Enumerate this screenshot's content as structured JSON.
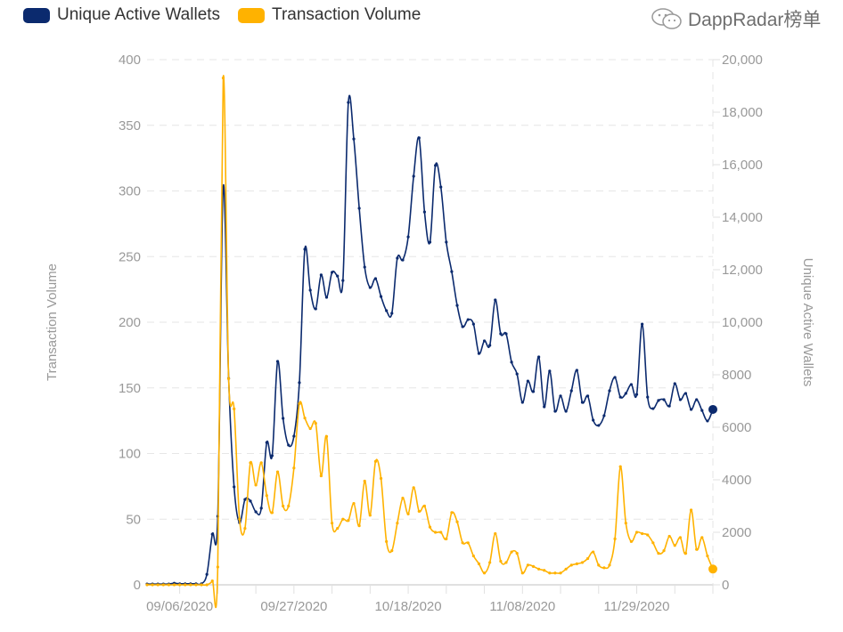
{
  "legend": [
    {
      "label": "Unique Active Wallets",
      "color": "#0b2a6e"
    },
    {
      "label": "Transaction Volume",
      "color": "#ffb200"
    }
  ],
  "watermark": {
    "text": "DappRadar榜单",
    "icon": "wechat-icon"
  },
  "chart_data": {
    "type": "line",
    "title": "",
    "y_left": {
      "label": "Transaction Volume",
      "range": [
        0,
        400
      ],
      "ticks": [
        "0",
        "50",
        "100",
        "150",
        "200",
        "250",
        "300",
        "350",
        "400"
      ]
    },
    "y_right": {
      "label": "Unique Active Wallets",
      "range": [
        0,
        20000
      ],
      "ticks": [
        "0",
        "2000",
        "4000",
        "6000",
        "8000",
        "10,000",
        "12,000",
        "14,000",
        "16,000",
        "18,000",
        "20,000"
      ]
    },
    "x_ticks": [
      "09/06/2020",
      "09/27/2020",
      "10/18/2020",
      "11/08/2020",
      "11/29/2020"
    ],
    "grid": true,
    "legend_position": "top-left",
    "x": [
      "08/31/2020",
      "09/01/2020",
      "09/02/2020",
      "09/03/2020",
      "09/04/2020",
      "09/05/2020",
      "09/06/2020",
      "09/07/2020",
      "09/08/2020",
      "09/09/2020",
      "09/10/2020",
      "09/11/2020",
      "09/12/2020",
      "09/13/2020",
      "09/14/2020",
      "09/15/2020",
      "09/16/2020",
      "09/17/2020",
      "09/18/2020",
      "09/19/2020",
      "09/20/2020",
      "09/21/2020",
      "09/22/2020",
      "09/23/2020",
      "09/24/2020",
      "09/25/2020",
      "09/26/2020",
      "09/27/2020",
      "09/28/2020",
      "09/29/2020",
      "09/30/2020",
      "10/01/2020",
      "10/02/2020",
      "10/03/2020",
      "10/04/2020",
      "10/05/2020",
      "10/06/2020",
      "10/07/2020",
      "10/08/2020",
      "10/09/2020",
      "10/10/2020",
      "10/11/2020",
      "10/12/2020",
      "10/13/2020",
      "10/14/2020",
      "10/15/2020",
      "10/16/2020",
      "10/17/2020",
      "10/18/2020",
      "10/19/2020",
      "10/20/2020",
      "10/21/2020",
      "10/22/2020",
      "10/23/2020",
      "10/24/2020",
      "10/25/2020",
      "10/26/2020",
      "10/27/2020",
      "10/28/2020",
      "10/29/2020",
      "10/30/2020",
      "10/31/2020",
      "11/01/2020",
      "11/02/2020",
      "11/03/2020",
      "11/04/2020",
      "11/05/2020",
      "11/06/2020",
      "11/07/2020",
      "11/08/2020",
      "11/09/2020",
      "11/10/2020",
      "11/11/2020",
      "11/12/2020",
      "11/13/2020",
      "11/14/2020",
      "11/15/2020",
      "11/16/2020",
      "11/17/2020",
      "11/18/2020",
      "11/19/2020",
      "11/20/2020",
      "11/21/2020",
      "11/22/2020",
      "11/23/2020",
      "11/24/2020",
      "11/25/2020",
      "11/26/2020",
      "11/27/2020",
      "11/28/2020",
      "11/29/2020",
      "11/30/2020",
      "12/01/2020",
      "12/02/2020",
      "12/03/2020",
      "12/04/2020",
      "12/05/2020",
      "12/06/2020",
      "12/07/2020",
      "12/08/2020",
      "12/09/2020",
      "12/10/2020",
      "12/11/2020",
      "12/12/2020",
      "12/13/2020"
    ],
    "series": [
      {
        "name": "Unique Active Wallets",
        "axis": "right",
        "color": "#0b2a6e",
        "values": [
          30,
          30,
          30,
          30,
          30,
          60,
          40,
          40,
          40,
          40,
          40,
          400,
          1930,
          2610,
          15150,
          7860,
          3730,
          2370,
          3250,
          3190,
          2780,
          2920,
          5420,
          4920,
          8510,
          6340,
          5320,
          5660,
          7700,
          12780,
          11220,
          10510,
          11800,
          10950,
          11900,
          11760,
          11590,
          18370,
          16980,
          14340,
          12100,
          11320,
          11660,
          10980,
          10440,
          10340,
          12440,
          12370,
          13250,
          15560,
          17020,
          14200,
          13050,
          15970,
          15150,
          13050,
          11930,
          10640,
          9830,
          10100,
          9930,
          8810,
          9290,
          9120,
          10850,
          9560,
          9560,
          8480,
          8030,
          6950,
          7760,
          7360,
          8680,
          6780,
          8140,
          6610,
          7190,
          6610,
          7390,
          8170,
          6950,
          7190,
          6270,
          6070,
          6440,
          7390,
          7900,
          7150,
          7290,
          7630,
          7250,
          9930,
          7150,
          6710,
          7020,
          7050,
          6810,
          7660,
          7050,
          7290,
          6680,
          7050,
          6640,
          6240,
          6680
        ]
      },
      {
        "name": "Transaction Volume",
        "axis": "left",
        "color": "#ffb200",
        "values": [
          0,
          0,
          0,
          0,
          0,
          0,
          0,
          0,
          0,
          0,
          0,
          0,
          3,
          13.6,
          386,
          157,
          134,
          50,
          43,
          93,
          76,
          93,
          68,
          55,
          86,
          60,
          60,
          89,
          138,
          127,
          119,
          123,
          83,
          113,
          47,
          43,
          50,
          49,
          62,
          45,
          79,
          53,
          94,
          81,
          33,
          26,
          47,
          66,
          54,
          74,
          56,
          60,
          44,
          40,
          40,
          35,
          55,
          48,
          32,
          32,
          22,
          16,
          9,
          17,
          39,
          18,
          17,
          25,
          24,
          9,
          15,
          14,
          12,
          11,
          9,
          9,
          9,
          12,
          15,
          16,
          17,
          20,
          25,
          15,
          13,
          15,
          35,
          90,
          47,
          33,
          40,
          39,
          38,
          32,
          24,
          26,
          37,
          30,
          36,
          24,
          57,
          27,
          36,
          22,
          12
        ]
      }
    ]
  }
}
